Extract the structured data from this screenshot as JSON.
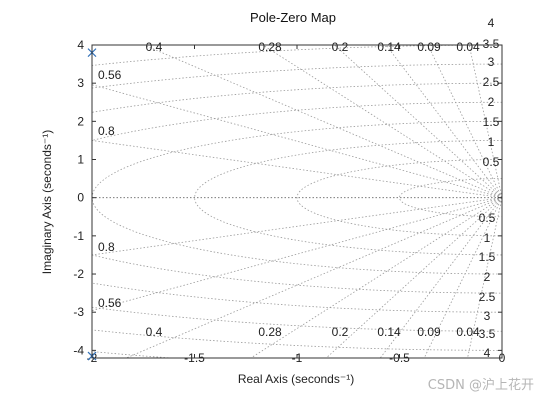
{
  "chart_data": {
    "type": "scatter",
    "title": "Pole-Zero Map",
    "xlabel": "Real Axis (seconds⁻¹)",
    "ylabel": "Imaginary Axis (seconds⁻¹)",
    "xlim": [
      -2,
      0
    ],
    "ylim": [
      -4.2,
      4.0
    ],
    "xticks": [
      "-2",
      "-1.5",
      "-1",
      "-0.5",
      "0"
    ],
    "yticks": [
      "-4",
      "-3",
      "-2",
      "-1",
      "0",
      "1",
      "2",
      "3",
      "4"
    ],
    "poles": [
      {
        "x": -2,
        "y": 3.8
      },
      {
        "x": -2,
        "y": -4.15
      }
    ],
    "damping_labels": [
      "0.4",
      "0.28",
      "0.2",
      "0.14",
      "0.09",
      "0.04"
    ],
    "damping_labels_left": [
      "0.56",
      "0.8"
    ],
    "frequency_labels": [
      "4",
      "3.5",
      "3",
      "2.5",
      "2",
      "1.5",
      "1",
      "0.5"
    ],
    "grid": true,
    "marker_color": "#3070b8",
    "grid_color": "#9a9a9a"
  },
  "watermark": "CSDN @沪上花开"
}
